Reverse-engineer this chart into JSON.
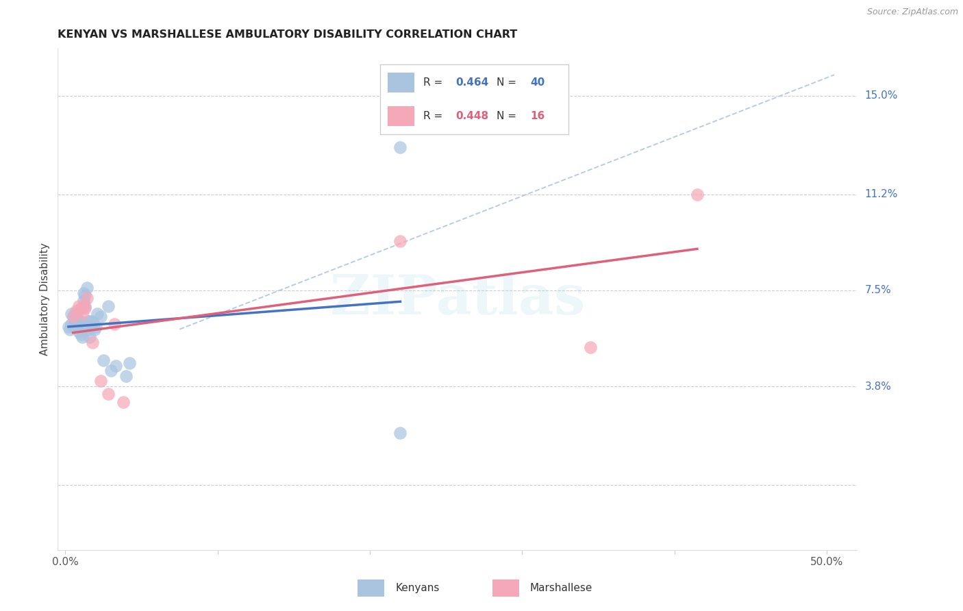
{
  "title": "KENYAN VS MARSHALLESE AMBULATORY DISABILITY CORRELATION CHART",
  "source": "Source: ZipAtlas.com",
  "ylabel": "Ambulatory Disability",
  "kenyan_color": "#aac4e0",
  "marshallese_color": "#f4a8b8",
  "kenyan_line_color": "#4472c4",
  "marshallese_line_color": "#e0607a",
  "diag_line_color": "#aac4e0",
  "grid_color": "#cccccc",
  "bg_color": "#ffffff",
  "xlim": [
    -0.005,
    0.52
  ],
  "ylim": [
    -0.025,
    0.168
  ],
  "ytick_vals": [
    0.0,
    0.038,
    0.075,
    0.112,
    0.15
  ],
  "ytick_lbls": [
    "",
    "3.8%",
    "7.5%",
    "11.2%",
    "15.0%"
  ],
  "xtick_vals": [
    0.0,
    0.1,
    0.2,
    0.3,
    0.4,
    0.5
  ],
  "xtick_lbls": [
    "0.0%",
    "",
    "",
    "",
    "",
    "50.0%"
  ],
  "kenyan_R": "0.464",
  "kenyan_N": "40",
  "marshallese_R": "0.448",
  "marshallese_N": "16",
  "label_kenyans": "Kenyans",
  "label_marshallese": "Marshallese",
  "kenyan_x": [
    0.002,
    0.003,
    0.004,
    0.004,
    0.005,
    0.005,
    0.006,
    0.007,
    0.007,
    0.008,
    0.008,
    0.009,
    0.009,
    0.01,
    0.01,
    0.011,
    0.011,
    0.012,
    0.012,
    0.013,
    0.013,
    0.014,
    0.015,
    0.015,
    0.016,
    0.016,
    0.017,
    0.018,
    0.019,
    0.02,
    0.021,
    0.023,
    0.025,
    0.028,
    0.03,
    0.033,
    0.04,
    0.042,
    0.22,
    0.22
  ],
  "kenyan_y": [
    0.061,
    0.06,
    0.062,
    0.066,
    0.061,
    0.065,
    0.062,
    0.063,
    0.066,
    0.061,
    0.064,
    0.059,
    0.063,
    0.058,
    0.063,
    0.057,
    0.061,
    0.071,
    0.074,
    0.069,
    0.073,
    0.076,
    0.06,
    0.063,
    0.057,
    0.063,
    0.061,
    0.063,
    0.06,
    0.061,
    0.066,
    0.065,
    0.048,
    0.069,
    0.044,
    0.046,
    0.042,
    0.047,
    0.13,
    0.02
  ],
  "marshallese_x": [
    0.005,
    0.007,
    0.009,
    0.01,
    0.011,
    0.012,
    0.013,
    0.014,
    0.018,
    0.023,
    0.028,
    0.032,
    0.038,
    0.22,
    0.345,
    0.415
  ],
  "marshallese_y": [
    0.065,
    0.067,
    0.069,
    0.068,
    0.066,
    0.069,
    0.068,
    0.072,
    0.055,
    0.04,
    0.035,
    0.062,
    0.032,
    0.094,
    0.053,
    0.112
  ]
}
